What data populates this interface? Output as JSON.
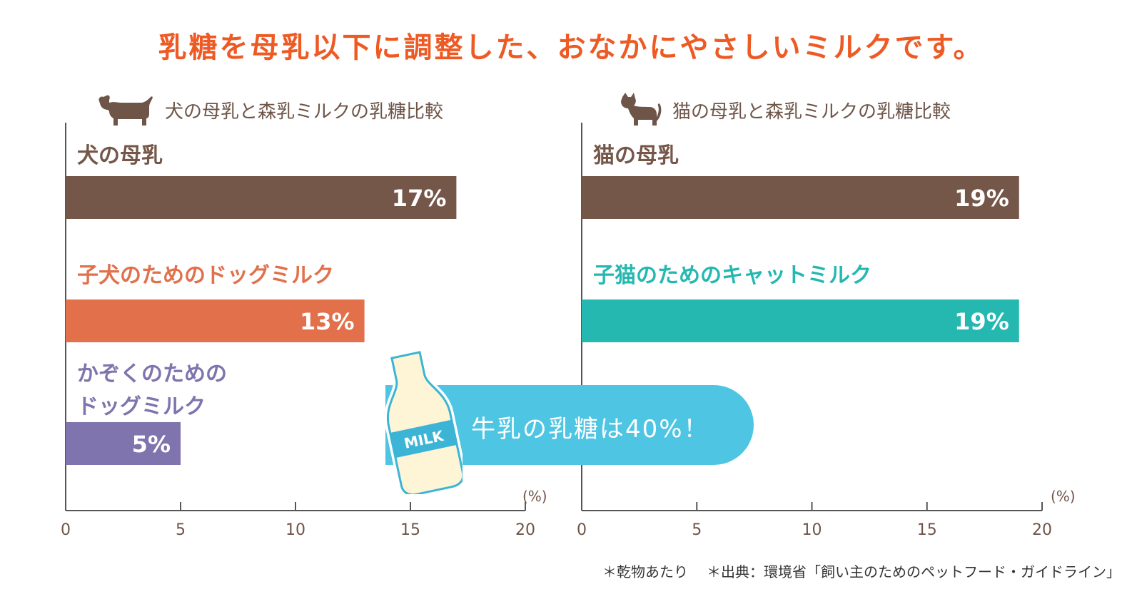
{
  "headline": "乳糖を母乳以下に調整した、おなかにやさしいミルクです。",
  "colors": {
    "dog_mother": "#75574a",
    "dog_milk": "#e1704b",
    "family_milk": "#7f74ad",
    "cat_mother": "#75574a",
    "cat_milk": "#25b8b1",
    "callout": "#4ec5e3",
    "headline": "#ee5a24"
  },
  "icons": {
    "left": "dachshund-icon",
    "right": "cat-icon",
    "callout": "milk-bottle-icon"
  },
  "chart_data": [
    {
      "type": "bar",
      "orientation": "horizontal",
      "title": "犬の母乳と森乳ミルクの乳糖比較",
      "categories": [
        "犬の母乳",
        "子犬のためのドッグミルク",
        "かぞくのための\nドッグミルク"
      ],
      "category_lines": [
        [
          "犬の母乳"
        ],
        [
          "子犬のためのドッグミルク"
        ],
        [
          "かぞくのための",
          "ドッグミルク"
        ]
      ],
      "values": [
        17,
        13,
        5
      ],
      "value_labels": [
        "17%",
        "13%",
        "5%"
      ],
      "xlim": [
        0,
        20
      ],
      "xticks": [
        "0",
        "5",
        "10",
        "15",
        "20"
      ],
      "unit": "(%)"
    },
    {
      "type": "bar",
      "orientation": "horizontal",
      "title": "猫の母乳と森乳ミルクの乳糖比較",
      "categories": [
        "猫の母乳",
        "子猫のためのキャットミルク"
      ],
      "category_lines": [
        [
          "猫の母乳"
        ],
        [
          "子猫のためのキャットミルク"
        ]
      ],
      "values": [
        19,
        19
      ],
      "value_labels": [
        "19%",
        "19%"
      ],
      "xlim": [
        0,
        20
      ],
      "xticks": [
        "0",
        "5",
        "10",
        "15",
        "20"
      ],
      "unit": "(%)"
    }
  ],
  "callout": {
    "text": "牛乳の乳糖は40%！",
    "bottle_label": "MILK"
  },
  "footnotes": [
    "＊乾物あたり",
    "＊出典：環境省「飼い主のためのペットフード・ガイドライン」"
  ]
}
